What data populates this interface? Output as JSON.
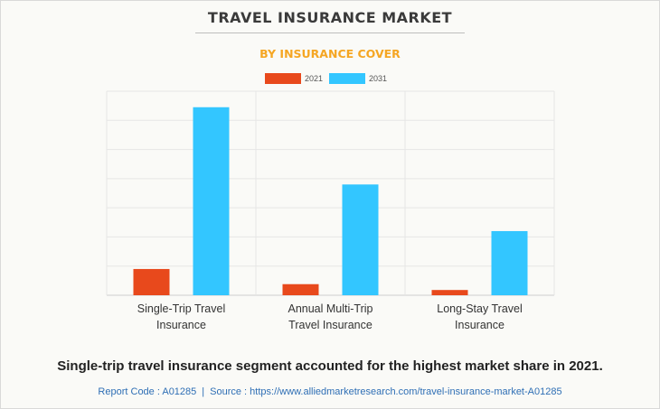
{
  "header": {
    "title": "TRAVEL INSURANCE MARKET",
    "subtitle": "BY INSURANCE COVER"
  },
  "colors": {
    "series_2021": "#e8491c",
    "series_2031": "#33c6ff",
    "subtitle": "#f5a623",
    "footer_link": "#2f6fb5"
  },
  "chart_data": {
    "type": "bar",
    "title": "TRAVEL INSURANCE MARKET",
    "subtitle": "BY INSURANCE COVER",
    "categories": [
      [
        "Single-Trip Travel",
        "Insurance"
      ],
      [
        "Annual Multi-Trip",
        "Travel Insurance"
      ],
      [
        "Long-Stay Travel",
        "Insurance"
      ]
    ],
    "series": [
      {
        "name": "2021",
        "values": [
          0.9,
          0.38,
          0.18
        ]
      },
      {
        "name": "2031",
        "values": [
          6.45,
          3.8,
          2.2
        ]
      }
    ],
    "ylim": [
      0,
      7
    ],
    "y_tick_labels_shown": false,
    "grid": "horizontal",
    "legend_position": "top-center"
  },
  "caption": "Single-trip travel insurance segment accounted for the highest market share in 2021.",
  "footer": {
    "report_code": "Report Code : A01285",
    "separator": "|",
    "source": "Source : https://www.alliedmarketresearch.com/travel-insurance-market-A01285"
  }
}
